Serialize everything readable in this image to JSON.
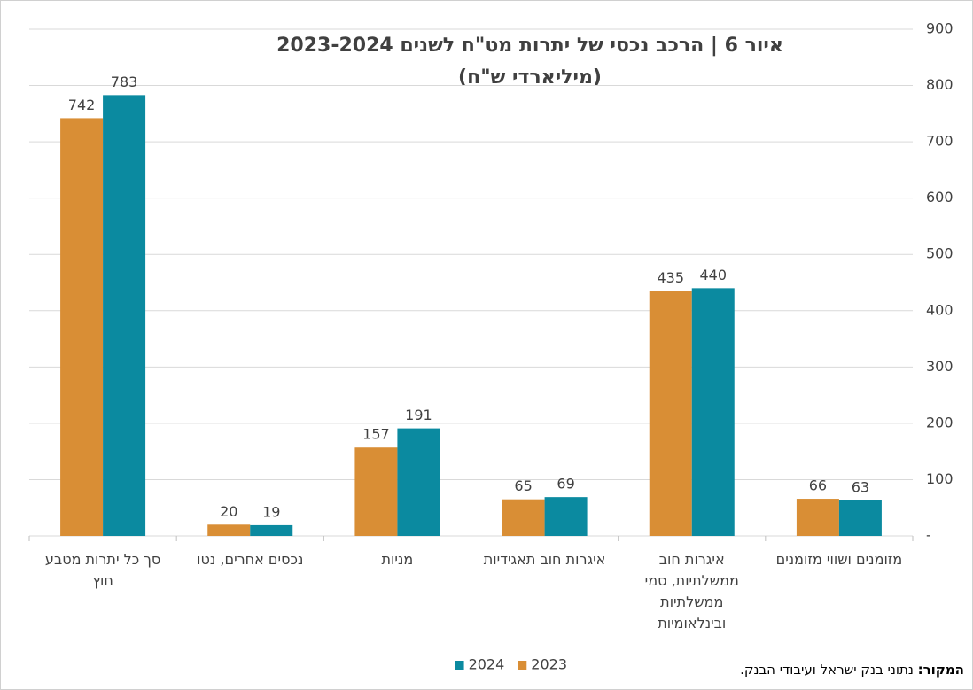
{
  "chart_data": {
    "type": "bar",
    "title": "איור 6 | הרכב נכסי של יתרות מט\"ח לשנים 2023-2024",
    "subtitle": "(מיליארדי ש\"ח)",
    "categories": [
      "סך כל יתרות מטבע חוץ",
      "נכסים אחרים, נטו",
      "מניות",
      "איגרות חוב תאגידיות",
      "איגרות חוב ממשלתיות, סמי ממשלתיות ובינלאומיות",
      "מזומנים ושווי מזומנים"
    ],
    "series": [
      {
        "name": "2023",
        "color": "#d98e35",
        "values": [
          742,
          20,
          157,
          65,
          435,
          66
        ]
      },
      {
        "name": "2024",
        "color": "#0b8aa0",
        "values": [
          783,
          19,
          191,
          69,
          440,
          63
        ]
      }
    ],
    "ylim": [
      0,
      900
    ],
    "yticks": [
      {
        "value": 0,
        "label": "-"
      },
      100,
      200,
      300,
      400,
      500,
      600,
      700,
      800,
      900
    ],
    "grid": true,
    "source_label": "המקור:",
    "source": "נתוני בנק ישראל ועיבודי הבנק."
  }
}
